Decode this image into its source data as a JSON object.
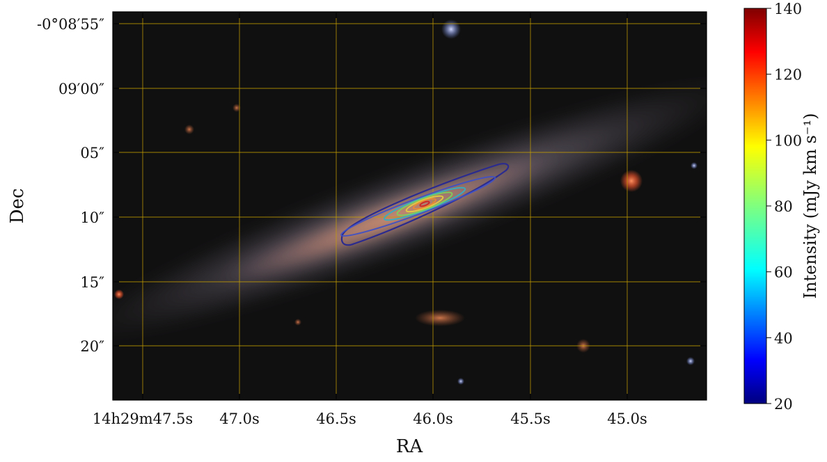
{
  "chart_data": {
    "type": "image-contour",
    "xlabel": "RA",
    "ylabel": "Dec",
    "x_ticks": [
      "14h29m47.5s",
      "47.0s",
      "46.5s",
      "46.0s",
      "45.5s",
      "45.0s"
    ],
    "y_ticks": [
      "-0°08′55″",
      "09′00″",
      "05″",
      "10″",
      "15″",
      "20″"
    ],
    "grid": true,
    "colorbar": {
      "label": "Intensity (mJy km s⁻¹)",
      "min": 20,
      "max": 140,
      "ticks": [
        "20",
        "40",
        "60",
        "80",
        "100",
        "120",
        "140"
      ],
      "colormap": "jet"
    },
    "contour_colors": [
      "#2b2b8f",
      "#3d50c8",
      "#2fb0c8",
      "#7fd35a",
      "#e8d040",
      "#f08a30",
      "#d02020"
    ],
    "grid_color": "#c8a000"
  }
}
